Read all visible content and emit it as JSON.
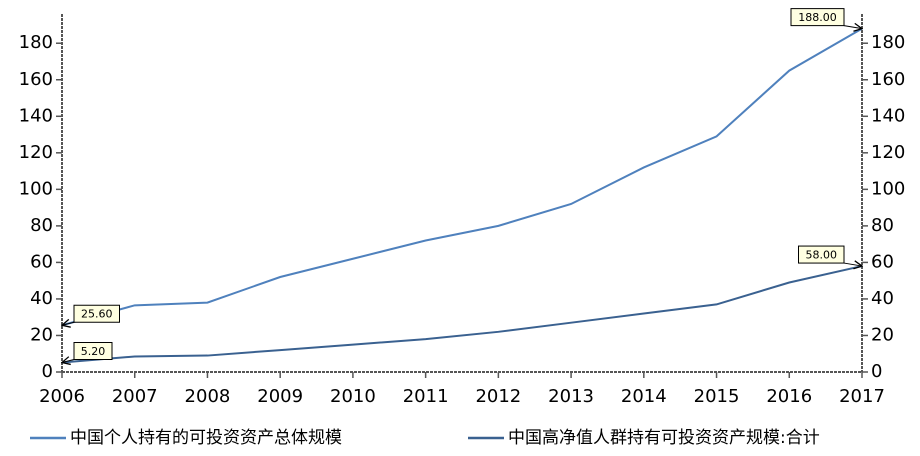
{
  "chart_data": {
    "type": "line",
    "x": [
      2006,
      2007,
      2008,
      2009,
      2010,
      2011,
      2012,
      2013,
      2014,
      2015,
      2016,
      2017
    ],
    "xlim": [
      2006,
      2017
    ],
    "xticks": [
      2006,
      2007,
      2008,
      2009,
      2010,
      2011,
      2012,
      2013,
      2014,
      2015,
      2016,
      2017
    ],
    "ylim": [
      0,
      196
    ],
    "yticks": [
      0,
      20,
      40,
      60,
      80,
      100,
      120,
      140,
      160,
      180
    ],
    "y2lim": [
      0,
      196
    ],
    "y2ticks": [
      0,
      20,
      40,
      60,
      80,
      100,
      120,
      140,
      160,
      180
    ],
    "legend": "bottom",
    "series": [
      {
        "name": "中国个人持有的可投资资产总体规模",
        "color": "#4f81bd",
        "values": [
          25.6,
          36.5,
          38,
          52,
          62,
          72,
          80,
          92,
          112,
          129,
          165,
          188
        ],
        "value_labels": [
          "25.60",
          null,
          null,
          null,
          null,
          null,
          null,
          null,
          null,
          null,
          null,
          "188.00"
        ]
      },
      {
        "name": "中国高净值人群持有可投资资产规模:合计",
        "color": "#3a6190",
        "values": [
          5.2,
          8.5,
          9,
          12,
          15,
          18,
          22,
          27,
          32,
          37,
          49,
          58
        ],
        "value_labels": [
          "5.20",
          null,
          null,
          null,
          null,
          null,
          null,
          null,
          null,
          null,
          null,
          "58.00"
        ]
      }
    ]
  }
}
